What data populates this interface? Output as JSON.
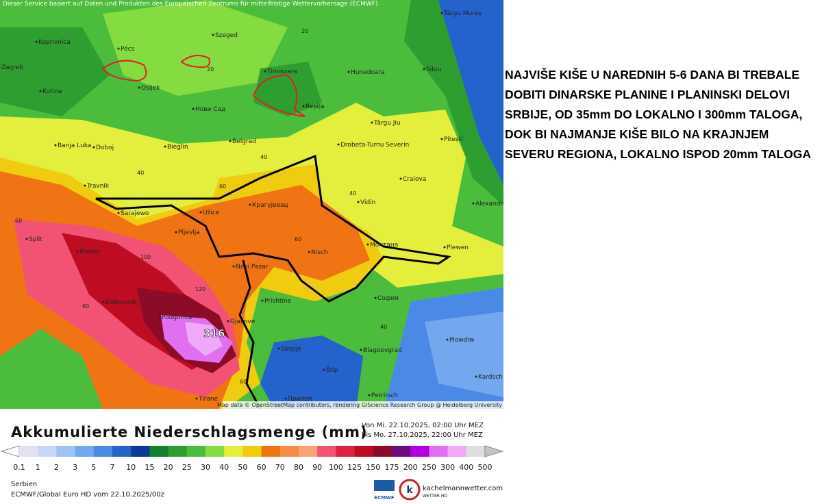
{
  "header": {
    "notice": "Dieser Service basiert auf Daten und Produkten des Europäischen Zentrums für mittelfristige Wettervorhersage (ECMWF)"
  },
  "map": {
    "places": [
      "Târgu Mureș",
      "Koprivnica",
      "Pécs",
      "Szeged",
      "Zagreb",
      "Timișoara",
      "Hunedoara",
      "Sibiu",
      "Kutina",
      "Osijek",
      "Нови Сад",
      "Reșița",
      "Târgu Jiu",
      "Banja Luka",
      "Doboj",
      "Bieglin",
      "Belgrad",
      "Drobeta-Turnu Severin",
      "Pitești",
      "Travnik",
      "Craiova",
      "Sarajewo",
      "Užice",
      "Крагујевац",
      "Vidin",
      "Alexandria",
      "Split",
      "Mostar",
      "Pljevlja",
      "Nisch",
      "Монтана",
      "Plewen",
      "Novi Pazar",
      "Dubrovnik",
      "Prishtine",
      "София",
      "Podgorica",
      "Gjakove",
      "Plowdiw",
      "Skopje",
      "Blagoevgrad",
      "Štip",
      "Kardsch",
      "Tirane",
      "Прилеп",
      "Petritsch"
    ],
    "contour_labels": [
      "20",
      "20",
      "40",
      "40",
      "40",
      "40",
      "60",
      "60",
      "60",
      "60",
      "60",
      "100",
      "120",
      "316"
    ],
    "attribution": "Map data © OpenStreetMap contributors, rendering GIScience Research Group @ Heidelberg University"
  },
  "annotation": "NAJVIŠE KIŠE U NAREDNIH 5-6 DANA BI TREBALE DOBITI DINARSKE PLANINE I PLANINSKI DELOVI SRBIJE, OD 35mm DO LOKALNO I 300mm TALOGA, DOK BI NAJMANJE KIŠE BILO NA KRAJNJEM SEVERU REGIONA, LOKALNO ISPOD 20mm TALOGA",
  "legend": {
    "title": "Akkumulierte Niederschlagsmenge (mm)",
    "period_from": "Von Mi. 22.10.2025, 02:00 Uhr MEZ",
    "period_to": "bis Mo. 27.10.2025, 22:00 Uhr MEZ",
    "ticks": [
      "0.1",
      "1",
      "2",
      "3",
      "5",
      "7",
      "10",
      "15",
      "20",
      "25",
      "30",
      "40",
      "50",
      "60",
      "70",
      "80",
      "90",
      "100",
      "125",
      "150",
      "175",
      "200",
      "250",
      "300",
      "400",
      "500"
    ],
    "colors": [
      "#e6dff2",
      "#c6d8f8",
      "#9cc2f6",
      "#74a8ee",
      "#4a8ae6",
      "#2462cc",
      "#10389c",
      "#12802e",
      "#2e9e30",
      "#4cbc3c",
      "#84dc40",
      "#e4ee3c",
      "#f0cc10",
      "#f07414",
      "#f48c48",
      "#f8a276",
      "#f25274",
      "#de2244",
      "#be0c22",
      "#8c0c28",
      "#6e0a82",
      "#b000e0",
      "#e070f0",
      "#f0a8f8",
      "#dedede"
    ]
  },
  "footer": {
    "region": "Serbien",
    "model": "ECMWF/Global Euro HD vom  22.10.2025/00z",
    "logo_ecmwf": "ECMWF",
    "logo_site": "kachelmannwetter.com",
    "logo_sub": "WETTER HD"
  }
}
